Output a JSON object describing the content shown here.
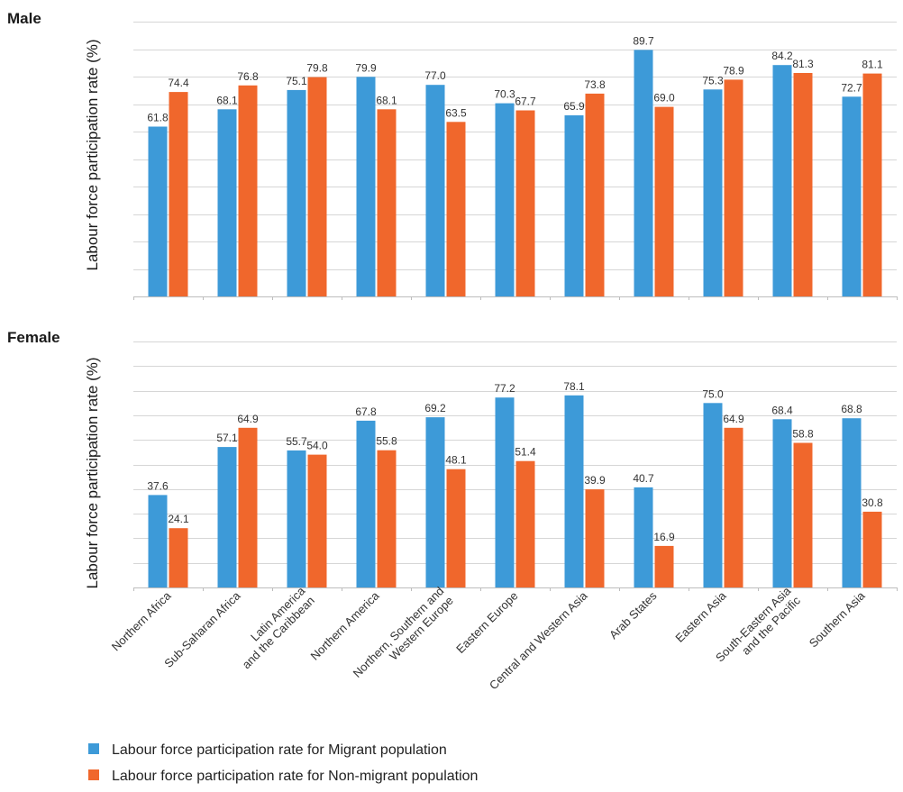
{
  "chart_data": {
    "type": "bar",
    "categories": [
      [
        "Northern Africa"
      ],
      [
        "Sub-Saharan Africa"
      ],
      [
        "Latin America",
        "and the Caribbean"
      ],
      [
        "Northern America"
      ],
      [
        "Northern, Southern and",
        "Western Europe"
      ],
      [
        "Eastern Europe"
      ],
      [
        "Central and Western Asia"
      ],
      [
        "Arab States"
      ],
      [
        "Eastern Asia"
      ],
      [
        "South-Eastern Asia",
        "and the Pacific"
      ],
      [
        "Southern Asia"
      ]
    ],
    "ylabel": "Labour force participation rate (%)",
    "ylim": [
      0,
      100
    ],
    "grid": true,
    "colors": {
      "migrant": "#3d9ad8",
      "nonmigrant": "#f0672c"
    },
    "legend": [
      "Labour force participation rate for Migrant population",
      "Labour force participation rate for Non-migrant population"
    ],
    "panels": [
      {
        "title": "Male",
        "series": [
          {
            "values": [
              61.8,
              68.1,
              75.1,
              79.9,
              77.0,
              70.3,
              65.9,
              89.7,
              75.3,
              84.2,
              72.7
            ]
          },
          {
            "values": [
              74.4,
              76.8,
              79.8,
              68.1,
              63.5,
              67.7,
              73.8,
              69.0,
              78.9,
              81.3,
              81.1
            ]
          }
        ]
      },
      {
        "title": "Female",
        "series": [
          {
            "values": [
              37.6,
              57.1,
              55.7,
              67.8,
              69.2,
              77.2,
              78.1,
              40.7,
              75.0,
              68.4,
              68.8
            ]
          },
          {
            "values": [
              24.1,
              64.9,
              54.0,
              55.8,
              48.1,
              51.4,
              39.9,
              16.9,
              64.9,
              58.8,
              30.8
            ]
          }
        ]
      }
    ]
  }
}
